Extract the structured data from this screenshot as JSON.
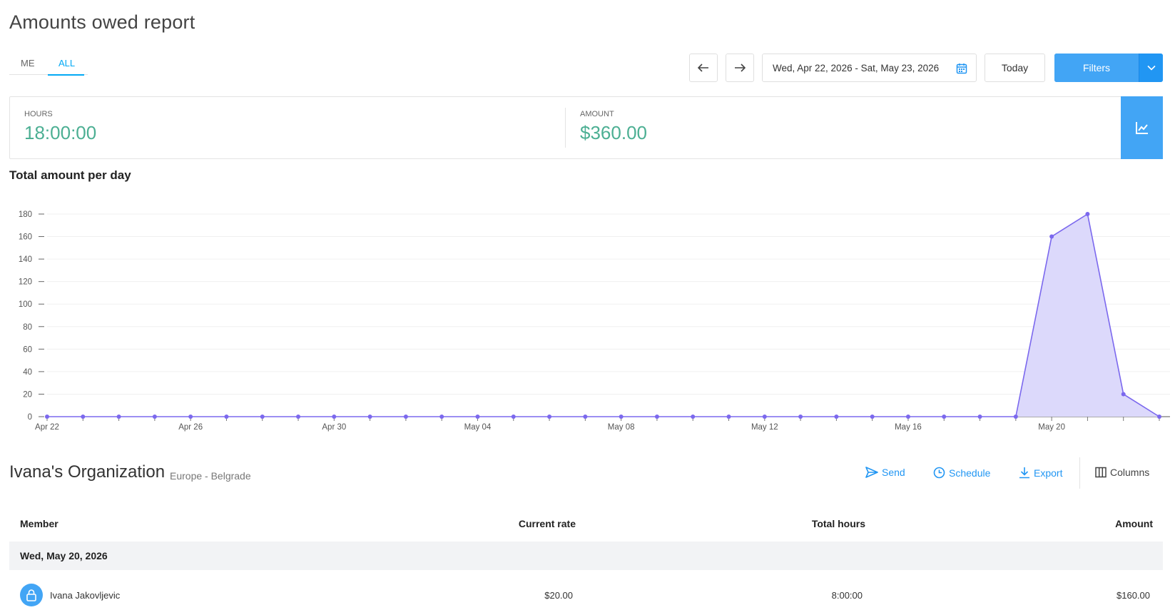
{
  "page": {
    "title": "Amounts owed report"
  },
  "scope_tabs": {
    "me": "ME",
    "all": "ALL",
    "active": "ALL"
  },
  "toolbar": {
    "date_range": "Wed, Apr 22, 2026 - Sat, May 23, 2026",
    "today_label": "Today",
    "filters_label": "Filters"
  },
  "summary": {
    "hours_label": "HOURS",
    "hours_value": "18:00:00",
    "amount_label": "AMOUNT",
    "amount_value": "$360.00"
  },
  "chart_section": {
    "title": "Total amount per day"
  },
  "chart_data": {
    "type": "area",
    "title": "Total amount per day",
    "xlabel": "",
    "ylabel": "",
    "ylim": [
      0,
      180
    ],
    "y_ticks": [
      0,
      20,
      40,
      60,
      80,
      100,
      120,
      140,
      160,
      180
    ],
    "x_tick_labels": [
      "Apr 22",
      "Apr 26",
      "Apr 30",
      "May 04",
      "May 08",
      "May 12",
      "May 16",
      "May 20"
    ],
    "x": [
      "Apr 22",
      "Apr 23",
      "Apr 24",
      "Apr 25",
      "Apr 26",
      "Apr 27",
      "Apr 28",
      "Apr 29",
      "Apr 30",
      "May 01",
      "May 02",
      "May 03",
      "May 04",
      "May 05",
      "May 06",
      "May 07",
      "May 08",
      "May 09",
      "May 10",
      "May 11",
      "May 12",
      "May 13",
      "May 14",
      "May 15",
      "May 16",
      "May 17",
      "May 18",
      "May 19",
      "May 20",
      "May 21",
      "May 22",
      "May 23"
    ],
    "series": [
      {
        "values": [
          0,
          0,
          0,
          0,
          0,
          0,
          0,
          0,
          0,
          0,
          0,
          0,
          0,
          0,
          0,
          0,
          0,
          0,
          0,
          0,
          0,
          0,
          0,
          0,
          0,
          0,
          0,
          0,
          160,
          180,
          20,
          0
        ]
      }
    ],
    "color": "#7b68ee",
    "fill": "#dcd9fb",
    "grid": true
  },
  "organization": {
    "name": "Ivana's Organization",
    "timezone": "Europe - Belgrade"
  },
  "actions": {
    "send": "Send",
    "schedule": "Schedule",
    "export": "Export",
    "columns": "Columns"
  },
  "table": {
    "headers": {
      "member": "Member",
      "rate": "Current rate",
      "hours": "Total hours",
      "amount": "Amount"
    },
    "groups": [
      {
        "date": "Wed, May 20, 2026",
        "rows": [
          {
            "member": "Ivana Jakovljevic",
            "rate": "$20.00",
            "hours": "8:00:00",
            "amount": "$160.00"
          }
        ]
      }
    ]
  }
}
